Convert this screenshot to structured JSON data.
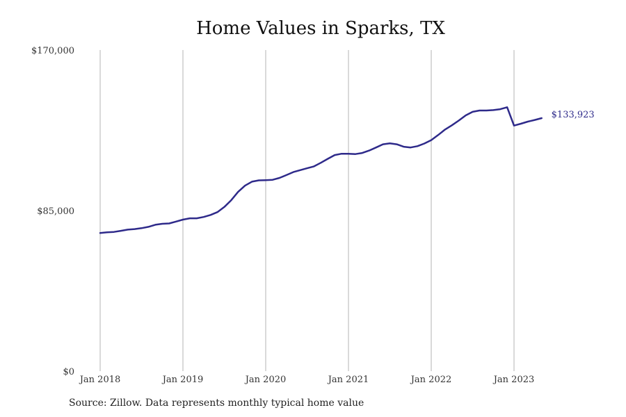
{
  "source_note": "Source: Zillow. Data represents monthly typical home value",
  "colors": {
    "line": "#2e2a8a",
    "grid": "#b3b3b3",
    "end_label": "#2e2a8a"
  },
  "chart_data": {
    "type": "line",
    "title": "Home Values in Sparks, TX",
    "xlabel": "",
    "ylabel": "",
    "ylim": [
      0,
      170000
    ],
    "y_ticks": [
      0,
      85000,
      170000
    ],
    "y_tick_labels": [
      "$0",
      "$85,000",
      "$170,000"
    ],
    "x_ticks": [
      "2018-01",
      "2019-01",
      "2020-01",
      "2021-01",
      "2022-01",
      "2023-01"
    ],
    "x_tick_labels": [
      "Jan 2018",
      "Jan 2019",
      "Jan 2020",
      "Jan 2021",
      "Jan 2022",
      "Jan 2023"
    ],
    "x_range": [
      "2018-01",
      "2024-01"
    ],
    "grid": "vertical",
    "end_label": "$133,923",
    "series": [
      {
        "x": [
          "2018-01",
          "2018-02",
          "2018-03",
          "2018-04",
          "2018-05",
          "2018-06",
          "2018-07",
          "2018-08",
          "2018-09",
          "2018-10",
          "2018-11",
          "2018-12",
          "2019-01",
          "2019-02",
          "2019-03",
          "2019-04",
          "2019-05",
          "2019-06",
          "2019-07",
          "2019-08",
          "2019-09",
          "2019-10",
          "2019-11",
          "2019-12",
          "2020-01",
          "2020-02",
          "2020-03",
          "2020-04",
          "2020-05",
          "2020-06",
          "2020-07",
          "2020-08",
          "2020-09",
          "2020-10",
          "2020-11",
          "2020-12",
          "2021-01",
          "2021-02",
          "2021-03",
          "2021-04",
          "2021-05",
          "2021-06",
          "2021-07",
          "2021-08",
          "2021-09",
          "2021-10",
          "2021-11",
          "2021-12",
          "2022-01",
          "2022-02",
          "2022-03",
          "2022-04",
          "2022-05",
          "2022-06",
          "2022-07",
          "2022-08",
          "2022-09",
          "2022-10",
          "2022-11",
          "2022-12",
          "2023-01",
          "2023-02",
          "2023-03",
          "2023-04",
          "2023-05"
        ],
        "values": [
          73100,
          73500,
          73700,
          74300,
          74900,
          75200,
          75700,
          76400,
          77500,
          78000,
          78200,
          79200,
          80200,
          80900,
          80900,
          81600,
          82700,
          84200,
          86900,
          90500,
          94900,
          98200,
          100300,
          101000,
          101100,
          101300,
          102300,
          103800,
          105400,
          106400,
          107400,
          108400,
          110300,
          112400,
          114400,
          115100,
          115100,
          114900,
          115500,
          116800,
          118400,
          120100,
          120600,
          120100,
          118800,
          118400,
          119100,
          120500,
          122300,
          125000,
          127900,
          130200,
          132700,
          135400,
          137300,
          138000,
          138000,
          138200,
          138700,
          139700,
          130000,
          131000,
          132100,
          133000,
          133923
        ]
      }
    ]
  }
}
